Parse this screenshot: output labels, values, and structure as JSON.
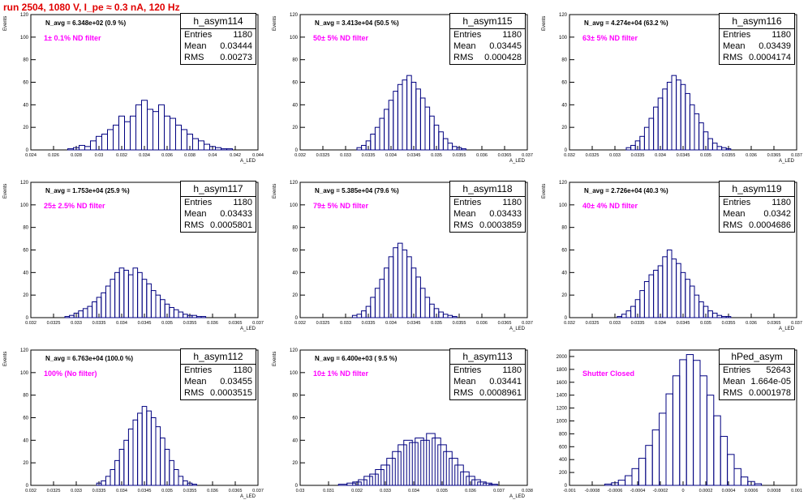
{
  "title": "run 2504,  1080 V, I_pe ≈ 0.3 nA, 120 Hz",
  "chart_data": [
    {
      "type": "bar",
      "hist": "h_asym114",
      "entries": "1180",
      "mean": "0.03444",
      "rms": "0.00273",
      "navg": "N_avg = 6.348e+02 (0.9 %)",
      "filter": "1± 0.1% ND filter",
      "xlabel": "A_LED",
      "ylabel": "Events",
      "xlim": [
        0.024,
        0.044
      ],
      "ylim": [
        0,
        120
      ],
      "yticks": [
        0,
        20,
        40,
        60,
        80,
        100,
        120
      ],
      "xticks": [
        "0.024",
        "0.026",
        "0.028",
        "0.03",
        "0.032",
        "0.034",
        "0.036",
        "0.038",
        "0.04",
        "0.042",
        "0.044"
      ],
      "x": [
        0.0275,
        0.028,
        0.0285,
        0.029,
        0.0295,
        0.03,
        0.0305,
        0.031,
        0.0315,
        0.032,
        0.0325,
        0.033,
        0.0335,
        0.034,
        0.0345,
        0.035,
        0.0355,
        0.036,
        0.0365,
        0.037,
        0.0375,
        0.038,
        0.0385,
        0.039,
        0.0395,
        0.04,
        0.0405,
        0.041,
        0.0415,
        0.042
      ],
      "values": [
        1,
        2,
        4,
        3,
        8,
        12,
        14,
        18,
        22,
        30,
        25,
        30,
        40,
        44,
        36,
        34,
        40,
        30,
        28,
        22,
        18,
        14,
        10,
        8,
        5,
        3,
        2,
        1,
        1,
        0
      ]
    },
    {
      "type": "bar",
      "hist": "h_asym115",
      "entries": "1180",
      "mean": "0.03445",
      "rms": "0.000428",
      "navg": "N_avg = 3.413e+04 (50.5 %)",
      "filter": "50± 5% ND filter",
      "xlabel": "A_LED",
      "ylabel": "Events",
      "xlim": [
        0.032,
        0.037
      ],
      "ylim": [
        0,
        120
      ],
      "yticks": [
        0,
        20,
        40,
        60,
        80,
        100,
        120
      ],
      "xticks": [
        "0.032",
        "0.0325",
        "0.033",
        "0.0335",
        "0.034",
        "0.0345",
        "0.035",
        "0.0355",
        "0.036",
        "0.0365",
        "0.037"
      ],
      "x": [
        0.0333,
        0.0334,
        0.0335,
        0.0336,
        0.0337,
        0.0338,
        0.0339,
        0.034,
        0.0341,
        0.0342,
        0.0343,
        0.0344,
        0.0345,
        0.0346,
        0.0347,
        0.0348,
        0.0349,
        0.035,
        0.0351,
        0.0352,
        0.0353,
        0.0354,
        0.0355,
        0.0356
      ],
      "values": [
        2,
        4,
        8,
        14,
        20,
        28,
        36,
        44,
        52,
        58,
        62,
        66,
        60,
        54,
        46,
        38,
        30,
        22,
        16,
        10,
        6,
        3,
        2,
        1
      ]
    },
    {
      "type": "bar",
      "hist": "h_asym116",
      "entries": "1180",
      "mean": "0.03439",
      "rms": "0.0004174",
      "navg": "N_avg = 4.274e+04 (63.2 %)",
      "filter": "63± 5% ND filter",
      "xlabel": "A_LED",
      "ylabel": "Events",
      "xlim": [
        0.032,
        0.037
      ],
      "ylim": [
        0,
        120
      ],
      "yticks": [
        0,
        20,
        40,
        60,
        80,
        100,
        120
      ],
      "xticks": [
        "0.032",
        "0.0325",
        "0.033",
        "0.0335",
        "0.034",
        "0.0345",
        "0.035",
        "0.0355",
        "0.036",
        "0.0365",
        "0.037"
      ],
      "x": [
        0.0333,
        0.0334,
        0.0335,
        0.0336,
        0.0337,
        0.0338,
        0.0339,
        0.034,
        0.0341,
        0.0342,
        0.0343,
        0.0344,
        0.0345,
        0.0346,
        0.0347,
        0.0348,
        0.0349,
        0.035,
        0.0351,
        0.0352,
        0.0353,
        0.0354,
        0.0355
      ],
      "values": [
        2,
        4,
        8,
        12,
        20,
        28,
        38,
        46,
        54,
        60,
        66,
        62,
        58,
        50,
        40,
        32,
        24,
        16,
        10,
        6,
        3,
        2,
        1
      ]
    },
    {
      "type": "bar",
      "hist": "h_asym117",
      "entries": "1180",
      "mean": "0.03433",
      "rms": "0.0005801",
      "navg": "N_avg = 1.753e+04 (25.9 %)",
      "filter": "25± 2.5% ND filter",
      "xlabel": "A_LED",
      "ylabel": "Events",
      "xlim": [
        0.032,
        0.037
      ],
      "ylim": [
        0,
        120
      ],
      "yticks": [
        0,
        20,
        40,
        60,
        80,
        100,
        120
      ],
      "xticks": [
        "0.032",
        "0.0325",
        "0.033",
        "0.0335",
        "0.034",
        "0.0345",
        "0.035",
        "0.0355",
        "0.036",
        "0.0365",
        "0.037"
      ],
      "x": [
        0.0328,
        0.0329,
        0.033,
        0.0331,
        0.0332,
        0.0333,
        0.0334,
        0.0335,
        0.0336,
        0.0337,
        0.0338,
        0.0339,
        0.034,
        0.0341,
        0.0342,
        0.0343,
        0.0344,
        0.0345,
        0.0346,
        0.0347,
        0.0348,
        0.0349,
        0.035,
        0.0351,
        0.0352,
        0.0353,
        0.0354,
        0.0355,
        0.0356,
        0.0357,
        0.0358
      ],
      "values": [
        1,
        2,
        4,
        6,
        8,
        10,
        14,
        18,
        22,
        28,
        34,
        40,
        44,
        42,
        38,
        44,
        40,
        34,
        30,
        24,
        20,
        16,
        12,
        9,
        7,
        5,
        3,
        2,
        2,
        1,
        1
      ]
    },
    {
      "type": "bar",
      "hist": "h_asym118",
      "entries": "1180",
      "mean": "0.03433",
      "rms": "0.0003859",
      "navg": "N_avg = 5.385e+04 (79.6 %)",
      "filter": "79± 5% ND filter",
      "xlabel": "A_LED",
      "ylabel": "Events",
      "xlim": [
        0.032,
        0.037
      ],
      "ylim": [
        0,
        120
      ],
      "yticks": [
        0,
        20,
        40,
        60,
        80,
        100,
        120
      ],
      "xticks": [
        "0.032",
        "0.0325",
        "0.033",
        "0.0335",
        "0.034",
        "0.0345",
        "0.035",
        "0.0355",
        "0.036",
        "0.0365",
        "0.037"
      ],
      "x": [
        0.0332,
        0.0333,
        0.0334,
        0.0335,
        0.0336,
        0.0337,
        0.0338,
        0.0339,
        0.034,
        0.0341,
        0.0342,
        0.0343,
        0.0344,
        0.0345,
        0.0346,
        0.0347,
        0.0348,
        0.0349,
        0.035,
        0.0351,
        0.0352,
        0.0353,
        0.0354
      ],
      "values": [
        2,
        3,
        6,
        10,
        18,
        26,
        34,
        44,
        54,
        62,
        66,
        60,
        54,
        44,
        36,
        26,
        18,
        12,
        8,
        5,
        3,
        2,
        1
      ]
    },
    {
      "type": "bar",
      "hist": "h_asym119",
      "entries": "1180",
      "mean": "0.0342",
      "rms": "0.0004686",
      "navg": "N_avg = 2.726e+04 (40.3 %)",
      "filter": "40± 4% ND filter",
      "xlabel": "A_LED",
      "ylabel": "Events",
      "xlim": [
        0.032,
        0.037
      ],
      "ylim": [
        0,
        120
      ],
      "yticks": [
        0,
        20,
        40,
        60,
        80,
        100,
        120
      ],
      "xticks": [
        "0.032",
        "0.0325",
        "0.033",
        "0.0335",
        "0.034",
        "0.0345",
        "0.035",
        "0.0355",
        "0.036",
        "0.0365",
        "0.037"
      ],
      "x": [
        0.0331,
        0.0332,
        0.0333,
        0.0334,
        0.0335,
        0.0336,
        0.0337,
        0.0338,
        0.0339,
        0.034,
        0.0341,
        0.0342,
        0.0343,
        0.0344,
        0.0345,
        0.0346,
        0.0347,
        0.0348,
        0.0349,
        0.035,
        0.0351,
        0.0352,
        0.0353,
        0.0354,
        0.0355
      ],
      "values": [
        1,
        3,
        6,
        10,
        16,
        24,
        32,
        38,
        42,
        46,
        54,
        60,
        52,
        48,
        40,
        34,
        28,
        20,
        14,
        10,
        6,
        4,
        2,
        1,
        1
      ]
    },
    {
      "type": "bar",
      "hist": "h_asym112",
      "entries": "1180",
      "mean": "0.03455",
      "rms": "0.0003515",
      "navg": "N_avg = 6.763e+04 (100.0 %)",
      "filter": "100% (No filter)",
      "xlabel": "A_LED",
      "ylabel": "Events",
      "xlim": [
        0.032,
        0.037
      ],
      "ylim": [
        0,
        120
      ],
      "yticks": [
        0,
        20,
        40,
        60,
        80,
        100,
        120
      ],
      "xticks": [
        "0.032",
        "0.0325",
        "0.033",
        "0.0335",
        "0.034",
        "0.0345",
        "0.035",
        "0.0355",
        "0.036",
        "0.0365",
        "0.037"
      ],
      "x": [
        0.0335,
        0.0336,
        0.0337,
        0.0338,
        0.0339,
        0.034,
        0.0341,
        0.0342,
        0.0343,
        0.0344,
        0.0345,
        0.0346,
        0.0347,
        0.0348,
        0.0349,
        0.035,
        0.0351,
        0.0352,
        0.0353,
        0.0354,
        0.0355,
        0.0356
      ],
      "values": [
        2,
        4,
        8,
        14,
        22,
        32,
        40,
        50,
        58,
        64,
        70,
        66,
        60,
        52,
        42,
        32,
        22,
        14,
        8,
        4,
        2,
        1
      ]
    },
    {
      "type": "bar",
      "hist": "h_asym113",
      "entries": "1180",
      "mean": "0.03441",
      "rms": "0.0008961",
      "navg": "N_avg = 6.400e+03 ( 9.5 %)",
      "filter": "10± 1% ND filter",
      "xlabel": "A_LED",
      "ylabel": "Events",
      "xlim": [
        0.03,
        0.038
      ],
      "ylim": [
        0,
        120
      ],
      "yticks": [
        0,
        20,
        40,
        60,
        80,
        100,
        120
      ],
      "xticks": [
        "0.03",
        "0.031",
        "0.032",
        "0.033",
        "0.034",
        "0.035",
        "0.036",
        "0.037",
        "0.038"
      ],
      "x": [
        0.0315,
        0.0318,
        0.032,
        0.0322,
        0.0324,
        0.0326,
        0.0328,
        0.033,
        0.0332,
        0.0334,
        0.0336,
        0.0338,
        0.034,
        0.0342,
        0.0344,
        0.0346,
        0.0348,
        0.035,
        0.0352,
        0.0354,
        0.0356,
        0.0358,
        0.036,
        0.0362,
        0.0364,
        0.0366,
        0.0368
      ],
      "values": [
        1,
        2,
        3,
        5,
        8,
        10,
        14,
        18,
        24,
        30,
        36,
        40,
        38,
        42,
        40,
        46,
        42,
        36,
        30,
        24,
        18,
        12,
        8,
        5,
        3,
        2,
        1
      ]
    },
    {
      "type": "bar",
      "hist": "hPed_asym",
      "entries": "52643",
      "mean": "1.664e-05",
      "rms": "0.0001978",
      "navg": "",
      "filter": "Shutter Closed",
      "xlabel": "",
      "ylabel": "",
      "xlim": [
        -0.001,
        0.001
      ],
      "ylim": [
        0,
        2100
      ],
      "yticks": [
        0,
        200,
        400,
        600,
        800,
        1000,
        1200,
        1400,
        1600,
        1800,
        2000
      ],
      "xticks": [
        "-0.001",
        "-0.0008",
        "-0.0006",
        "-0.0004",
        "-0.0002",
        "0",
        "0.0002",
        "0.0004",
        "0.0006",
        "0.0008",
        "0.001"
      ],
      "x": [
        -0.00066,
        -0.0006,
        -0.00054,
        -0.00048,
        -0.00042,
        -0.00036,
        -0.0003,
        -0.00024,
        -0.00018,
        -0.00012,
        -6e-05,
        0,
        6e-05,
        0.00012,
        0.00018,
        0.00024,
        0.0003,
        0.00036,
        0.00042,
        0.00048,
        0.00054,
        0.0006,
        0.00066
      ],
      "values": [
        20,
        40,
        80,
        150,
        260,
        420,
        620,
        860,
        1120,
        1420,
        1700,
        1950,
        2030,
        1940,
        1700,
        1400,
        1080,
        760,
        480,
        260,
        130,
        60,
        25
      ]
    }
  ]
}
